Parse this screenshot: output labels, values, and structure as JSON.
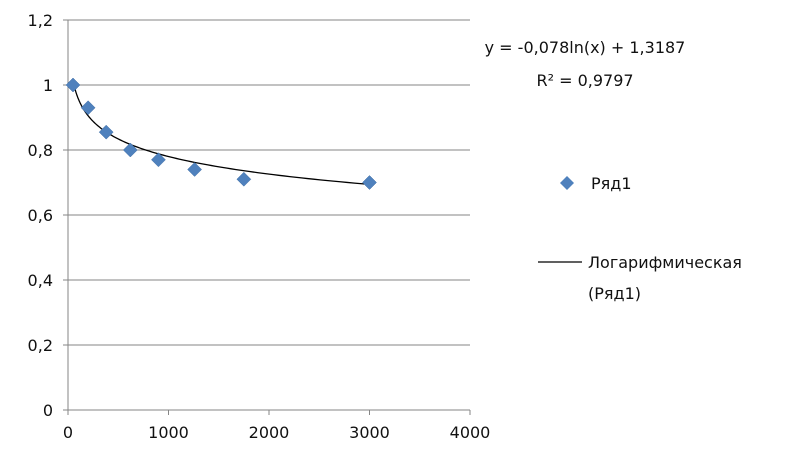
{
  "colors": {
    "marker": "#4F81BD",
    "trendline": "#000000",
    "gridline": "#868686",
    "axis": "#868686"
  },
  "chart_data": {
    "type": "scatter",
    "grid": true,
    "legend_position": "right",
    "xlim": [
      0,
      4000
    ],
    "ylim": [
      0,
      1.2
    ],
    "x_ticks": [
      0,
      1000,
      2000,
      3000,
      4000
    ],
    "x_tick_labels": [
      "0",
      "1000",
      "2000",
      "3000",
      "4000"
    ],
    "y_ticks": [
      0,
      0.2,
      0.4,
      0.6,
      0.8,
      1.0,
      1.2
    ],
    "y_tick_labels": [
      "0",
      "0,2",
      "0,4",
      "0,6",
      "0,8",
      "1",
      "1,2"
    ],
    "series": [
      {
        "name": "Ряд1",
        "marker": "diamond",
        "points": [
          {
            "x": 50,
            "y": 1.0
          },
          {
            "x": 200,
            "y": 0.93
          },
          {
            "x": 380,
            "y": 0.855
          },
          {
            "x": 620,
            "y": 0.8
          },
          {
            "x": 900,
            "y": 0.77
          },
          {
            "x": 1260,
            "y": 0.74
          },
          {
            "x": 1750,
            "y": 0.71
          },
          {
            "x": 3000,
            "y": 0.7
          }
        ]
      }
    ],
    "trendline": {
      "name": "Логарифмическая (Ряд1)",
      "legend_lines": [
        "Логарифмическая",
        "(Ряд1)"
      ],
      "type": "logarithmic",
      "a": -0.078,
      "b": 1.3187,
      "x_start": 50,
      "x_end": 3000,
      "equation": "y = -0,078ln(x) + 1,3187",
      "r2_label": "R² = 0,9797"
    }
  }
}
